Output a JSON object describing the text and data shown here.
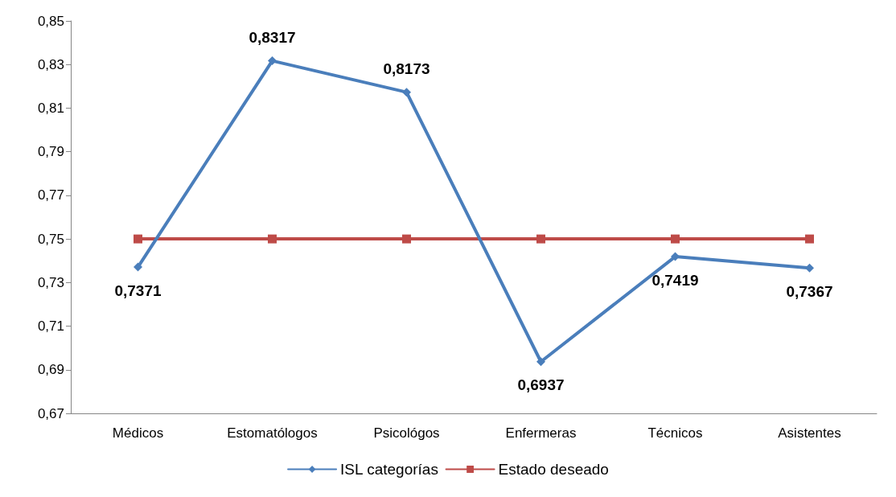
{
  "chart_data": {
    "type": "line",
    "categories": [
      "Médicos",
      "Estomatólogos",
      "Psicológos",
      "Enfermeras",
      "Técnicos",
      "Asistentes"
    ],
    "series": [
      {
        "name": "ISL categorías",
        "color": "#4a7ebb",
        "marker": "diamond",
        "values": [
          0.7371,
          0.8317,
          0.8173,
          0.6937,
          0.7419,
          0.7367
        ],
        "value_labels": [
          "0,7371",
          "0,8317",
          "0,8173",
          "0,6937",
          "0,7419",
          "0,7367"
        ]
      },
      {
        "name": "Estado deseado",
        "color": "#be4b48",
        "marker": "square",
        "values": [
          0.75,
          0.75,
          0.75,
          0.75,
          0.75,
          0.75
        ]
      }
    ],
    "ylim": [
      0.67,
      0.85
    ],
    "yticks": [
      {
        "value": 0.67,
        "label": "0,67"
      },
      {
        "value": 0.69,
        "label": "0,69"
      },
      {
        "value": 0.71,
        "label": "0,71"
      },
      {
        "value": 0.73,
        "label": "0,73"
      },
      {
        "value": 0.75,
        "label": "0,75"
      },
      {
        "value": 0.77,
        "label": "0,77"
      },
      {
        "value": 0.79,
        "label": "0,79"
      },
      {
        "value": 0.81,
        "label": "0,81"
      },
      {
        "value": 0.83,
        "label": "0,83"
      },
      {
        "value": 0.85,
        "label": "0,85"
      }
    ],
    "grid": false,
    "legend": "bottom",
    "line_style": "solid"
  }
}
